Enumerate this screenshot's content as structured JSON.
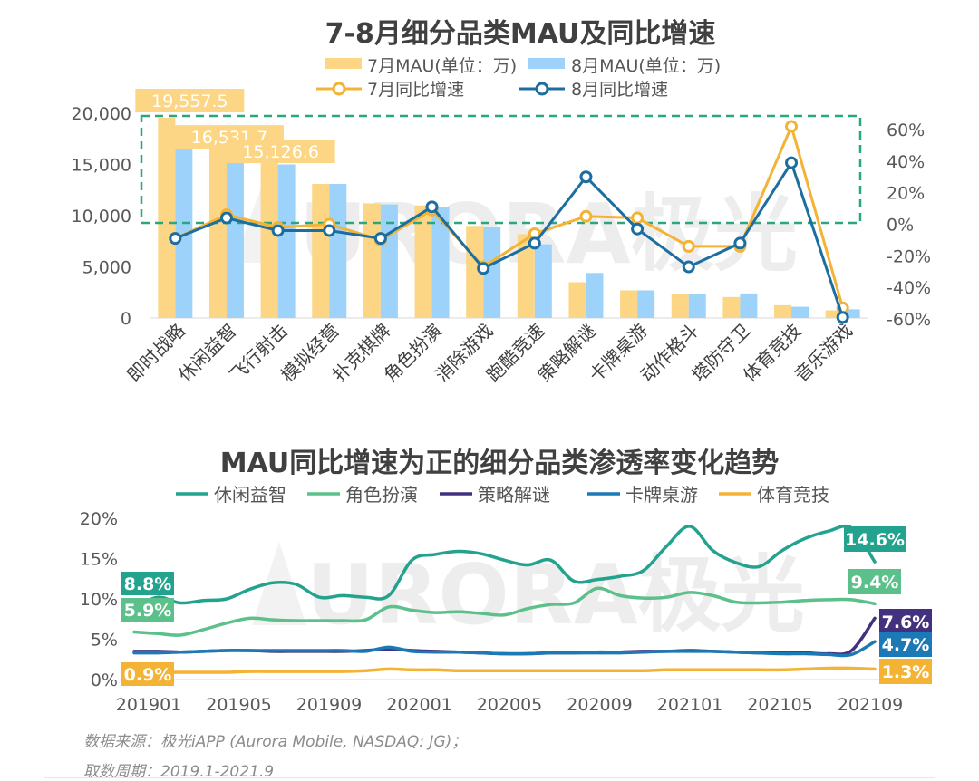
{
  "watermark": "URORA极光",
  "source_note": "数据来源：极光iAPP (Aurora Mobile, NASDAQ: JG)；",
  "period_note": "取数周期：2019.1-2021.9",
  "colors": {
    "jul_bar": "#FCD685",
    "aug_bar": "#9DD2FA",
    "jul_line": "#F5B335",
    "aug_line": "#1C6EA0",
    "highlight_box": "#2BA77E"
  },
  "chart_data": [
    {
      "type": "bar",
      "title": "7-8月细分品类MAU及同比增速",
      "categories": [
        "即时战略",
        "休闲益智",
        "飞行射击",
        "模拟经营",
        "扑克棋牌",
        "角色扮演",
        "消除游戏",
        "跑酷竞速",
        "策略解谜",
        "卡牌桌游",
        "动作格斗",
        "塔防守卫",
        "体育竞技",
        "音乐游戏"
      ],
      "y_left": {
        "ticks": [
          "0",
          "5,000",
          "10,000",
          "15,000",
          "20,000"
        ],
        "range": [
          0,
          20000
        ]
      },
      "y_right": {
        "ticks": [
          "-60%",
          "-40%",
          "-20%",
          "0%",
          "20%",
          "40%",
          "60%"
        ],
        "range": [
          -60,
          60
        ]
      },
      "series": [
        {
          "name": "7月MAU(单位：万)",
          "kind": "bar",
          "axis": "left",
          "values": [
            19557.5,
            16531.7,
            15126.6,
            13100,
            11200,
            11000,
            9000,
            8200,
            3500,
            2700,
            2300,
            2050,
            1250,
            750
          ]
        },
        {
          "name": "8月MAU(单位：万)",
          "kind": "bar",
          "axis": "left",
          "values": [
            17000,
            15300,
            15000,
            13100,
            11100,
            10800,
            8900,
            7200,
            4400,
            2700,
            2300,
            2400,
            1100,
            850
          ]
        },
        {
          "name": "7月同比增速",
          "kind": "line",
          "axis": "right",
          "values": [
            -9,
            6,
            -2,
            0,
            -10,
            9,
            -27,
            -6,
            5,
            4,
            -14,
            -14,
            62,
            -53
          ]
        },
        {
          "name": "8月同比增速",
          "kind": "line",
          "axis": "right",
          "values": [
            -9,
            4,
            -4,
            -4,
            -9,
            11,
            -28,
            -12,
            30,
            -3,
            -27,
            -12,
            39,
            -59
          ]
        }
      ],
      "data_labels": [
        "19,557.5",
        "16,531.7",
        "15,126.6"
      ]
    },
    {
      "type": "line",
      "title": "MAU同比增速为正的细分品类渗透率变化趋势",
      "x_ticks": [
        "201901",
        "201905",
        "201909",
        "202001",
        "202005",
        "202009",
        "202101",
        "202105",
        "202109"
      ],
      "y_ticks": [
        "0%",
        "5%",
        "10%",
        "15%",
        "20%"
      ],
      "y_range": [
        0,
        20
      ],
      "start_labels": [
        "8.8%",
        "5.9%",
        "0.9%"
      ],
      "end_labels": [
        "14.6%",
        "9.4%",
        "7.6%",
        "4.7%",
        "1.3%"
      ],
      "series": [
        {
          "name": "休闲益智",
          "color": "#23A38E",
          "values": [
            8.8,
            10.2,
            9.5,
            9.8,
            10.0,
            11.2,
            12.0,
            11.8,
            10.2,
            10.4,
            10.2,
            10.4,
            14.8,
            15.5,
            15.9,
            15.6,
            14.8,
            14.2,
            14.8,
            12.2,
            12.4,
            12.8,
            13.5,
            16.5,
            19.0,
            16.0,
            14.5,
            14.0,
            16.0,
            17.5,
            18.4,
            18.8,
            14.6
          ]
        },
        {
          "name": "角色扮演",
          "color": "#5CC08A",
          "values": [
            5.9,
            5.7,
            5.5,
            6.2,
            7.0,
            7.6,
            7.4,
            7.3,
            7.3,
            7.3,
            7.4,
            9.0,
            8.6,
            8.3,
            8.4,
            8.2,
            8.0,
            8.8,
            9.3,
            9.5,
            11.3,
            10.4,
            10.1,
            10.2,
            10.8,
            10.4,
            9.6,
            9.5,
            9.6,
            9.8,
            9.9,
            9.9,
            9.4
          ]
        },
        {
          "name": "策略解谜",
          "color": "#43307F",
          "values": [
            3.5,
            3.5,
            3.4,
            3.5,
            3.6,
            3.6,
            3.5,
            3.5,
            3.5,
            3.5,
            3.6,
            3.8,
            3.6,
            3.5,
            3.4,
            3.3,
            3.2,
            3.2,
            3.3,
            3.3,
            3.4,
            3.4,
            3.5,
            3.5,
            3.6,
            3.5,
            3.4,
            3.3,
            3.3,
            3.3,
            3.2,
            3.6,
            7.6
          ]
        },
        {
          "name": "卡牌桌游",
          "color": "#1B79B5",
          "values": [
            3.3,
            3.3,
            3.4,
            3.5,
            3.6,
            3.6,
            3.6,
            3.6,
            3.6,
            3.6,
            3.5,
            4.0,
            3.5,
            3.4,
            3.4,
            3.3,
            3.2,
            3.2,
            3.3,
            3.3,
            3.3,
            3.3,
            3.4,
            3.5,
            3.5,
            3.5,
            3.4,
            3.3,
            3.2,
            3.2,
            3.1,
            3.1,
            4.7
          ]
        },
        {
          "name": "体育竞技",
          "color": "#F5B335",
          "values": [
            0.9,
            0.9,
            0.9,
            0.9,
            0.9,
            1.0,
            1.0,
            1.0,
            1.0,
            1.0,
            1.1,
            1.3,
            1.2,
            1.2,
            1.1,
            1.1,
            1.1,
            1.1,
            1.1,
            1.1,
            1.1,
            1.1,
            1.1,
            1.2,
            1.2,
            1.2,
            1.2,
            1.2,
            1.2,
            1.3,
            1.4,
            1.4,
            1.3
          ]
        }
      ]
    }
  ]
}
